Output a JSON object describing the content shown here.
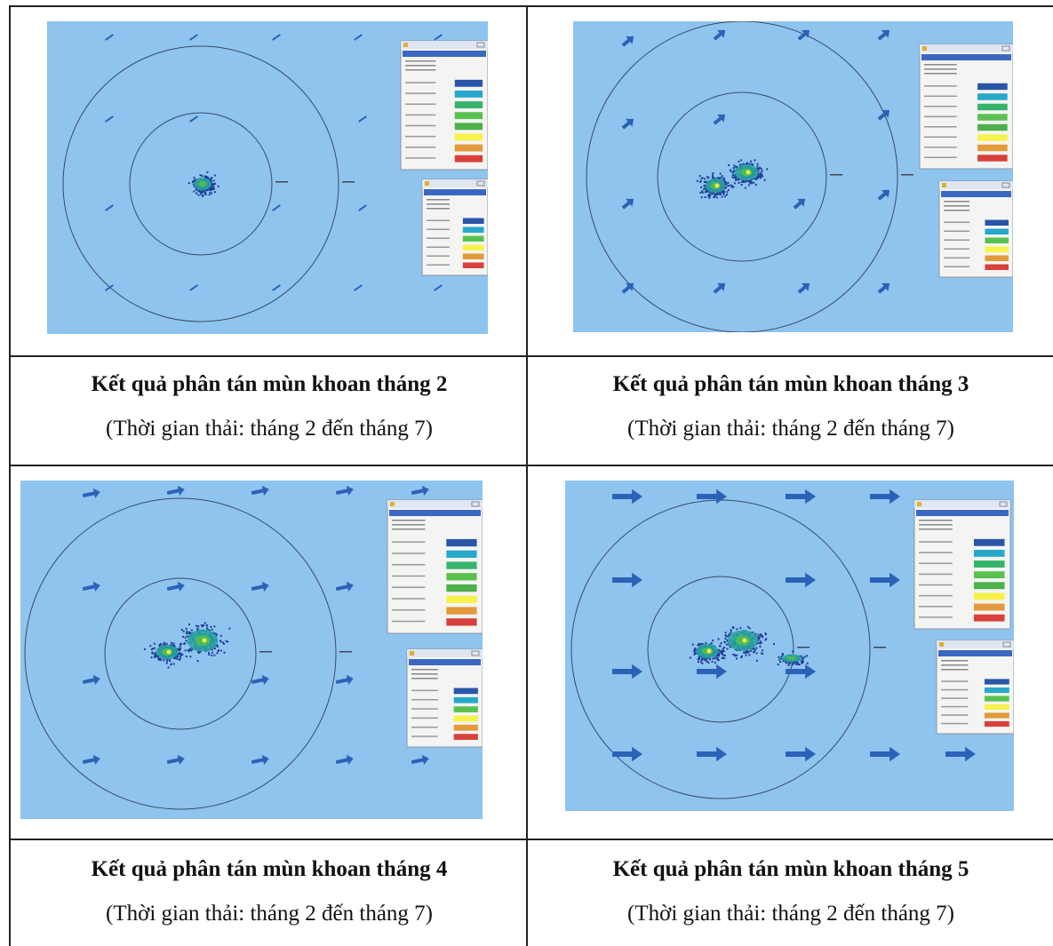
{
  "colors": {
    "map_background": "#8ec4ee",
    "circle": "#3a4a68",
    "arrow": "#2b62b8",
    "win_header": "#3a67c2",
    "win_body": "#f4f4f2",
    "chem_swatches": [
      "#2855a8",
      "#27a7c9",
      "#36b36a",
      "#59c24f",
      "#4db04a",
      "#f6f24a",
      "#e29a3a",
      "#d9403a"
    ],
    "speed_swatches": [
      "#2855a8",
      "#27a7c9",
      "#59c24f",
      "#f6f24a",
      "#e29a3a",
      "#d9403a"
    ]
  },
  "icons": {
    "arrow": "current-direction-arrow-icon",
    "plume": "drill-cuttings-plume-icon"
  },
  "panels": [
    {
      "title": "Kết quả phân tán mùn khoan tháng 2",
      "subtitle": "(Thời gian thải: tháng 2 đến tháng 7)",
      "arrow_style": "small-dashes",
      "plume_extent": "small"
    },
    {
      "title": "Kết quả phân tán mùn khoan tháng 3",
      "subtitle": "(Thời gian thải: tháng 2 đến tháng 7)",
      "arrow_style": "diagonal-northeast",
      "plume_extent": "medium"
    },
    {
      "title": "Kết quả phân tán mùn khoan tháng 4",
      "subtitle": "(Thời gian thải: tháng 2 đến tháng 7)",
      "arrow_style": "east",
      "plume_extent": "medium-large"
    },
    {
      "title": "Kết quả phân tán mùn khoan tháng 5",
      "subtitle": "(Thời gian thải: tháng 2 đến tháng 7)",
      "arrow_style": "east-large",
      "plume_extent": "large"
    }
  ]
}
